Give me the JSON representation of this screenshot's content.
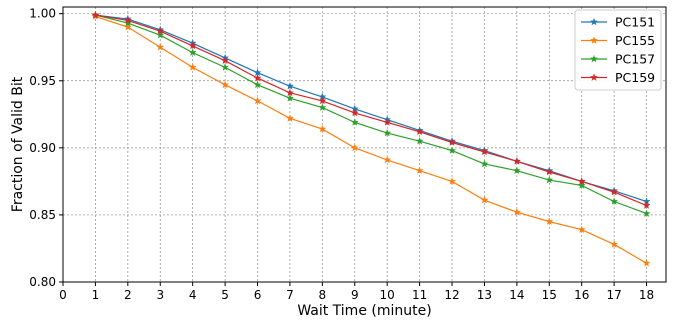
{
  "chart_data": {
    "type": "line",
    "xlabel": "Wait Time (minute)",
    "ylabel": "Fraction of Valid Bit",
    "xlim": [
      0,
      18.6
    ],
    "ylim": [
      0.8,
      1.005
    ],
    "xticks": [
      0,
      1,
      2,
      3,
      4,
      5,
      6,
      7,
      8,
      9,
      10,
      11,
      12,
      13,
      14,
      15,
      16,
      17,
      18
    ],
    "yticks": [
      0.8,
      0.85,
      0.9,
      0.95,
      1.0
    ],
    "ytick_labels": [
      "0.80",
      "0.85",
      "0.90",
      "0.95",
      "1.00"
    ],
    "grid": true,
    "legend_position": "top-right",
    "x": [
      1,
      2,
      3,
      4,
      5,
      6,
      7,
      8,
      9,
      10,
      11,
      12,
      13,
      14,
      15,
      16,
      17,
      18
    ],
    "series": [
      {
        "name": "PC151",
        "color": "#1f77b4",
        "values": [
          0.999,
          0.996,
          0.988,
          0.978,
          0.967,
          0.956,
          0.946,
          0.938,
          0.929,
          0.921,
          0.913,
          0.905,
          0.898,
          0.89,
          0.883,
          0.875,
          0.868,
          0.86
        ]
      },
      {
        "name": "PC155",
        "color": "#ff7f0e",
        "values": [
          0.998,
          0.99,
          0.975,
          0.96,
          0.947,
          0.935,
          0.922,
          0.914,
          0.9,
          0.891,
          0.883,
          0.875,
          0.861,
          0.852,
          0.845,
          0.839,
          0.828,
          0.814
        ]
      },
      {
        "name": "PC157",
        "color": "#2ca02c",
        "values": [
          0.999,
          0.993,
          0.984,
          0.971,
          0.96,
          0.947,
          0.937,
          0.93,
          0.919,
          0.911,
          0.905,
          0.898,
          0.888,
          0.883,
          0.876,
          0.872,
          0.86,
          0.851
        ]
      },
      {
        "name": "PC159",
        "color": "#d62728",
        "values": [
          0.999,
          0.995,
          0.987,
          0.976,
          0.965,
          0.952,
          0.941,
          0.935,
          0.926,
          0.919,
          0.912,
          0.904,
          0.897,
          0.89,
          0.882,
          0.875,
          0.867,
          0.857
        ]
      }
    ]
  }
}
